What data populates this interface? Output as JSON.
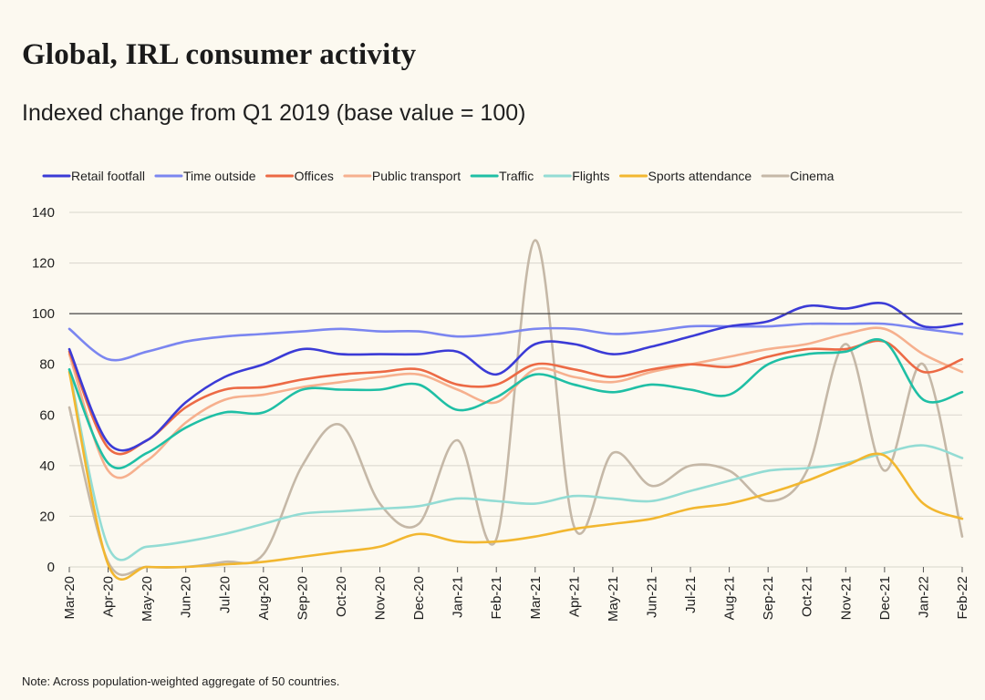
{
  "title": "Global, IRL consumer activity",
  "subtitle": "Indexed change from Q1 2019 (base value = 100)",
  "note": "Note: Across population-weighted aggregate of 50 countries.",
  "chart_data": {
    "type": "line",
    "x": [
      "Mar-20",
      "Apr-20",
      "May-20",
      "Jun-20",
      "Jul-20",
      "Aug-20",
      "Sep-20",
      "Oct-20",
      "Nov-20",
      "Dec-20",
      "Jan-21",
      "Feb-21",
      "Mar-21",
      "Apr-21",
      "May-21",
      "Jun-21",
      "Jul-21",
      "Aug-21",
      "Sep-21",
      "Oct-21",
      "Nov-21",
      "Dec-21",
      "Jan-22",
      "Feb-22"
    ],
    "ylim": [
      0,
      140
    ],
    "yticks": [
      0,
      20,
      40,
      60,
      80,
      100,
      120,
      140
    ],
    "reference_line": 100,
    "grid": "horizontal",
    "legend_position": "top",
    "series": [
      {
        "name": "Retail footfall",
        "color": "#3b3bd6",
        "values": [
          86,
          49,
          50,
          65,
          75,
          80,
          86,
          84,
          84,
          84,
          85,
          76,
          88,
          88,
          84,
          87,
          91,
          95,
          97,
          103,
          102,
          104,
          95,
          96
        ]
      },
      {
        "name": "Time outside",
        "color": "#7b86f0",
        "values": [
          94,
          82,
          85,
          89,
          91,
          92,
          93,
          94,
          93,
          93,
          91,
          92,
          94,
          94,
          92,
          93,
          95,
          95,
          95,
          96,
          96,
          96,
          94,
          92
        ]
      },
      {
        "name": "Offices",
        "color": "#ec6a45",
        "values": [
          85,
          47,
          50,
          63,
          70,
          71,
          74,
          76,
          77,
          78,
          72,
          72,
          80,
          78,
          75,
          78,
          80,
          79,
          83,
          86,
          86,
          89,
          77,
          82
        ]
      },
      {
        "name": "Public transport",
        "color": "#f6b08e",
        "values": [
          84,
          38,
          42,
          57,
          66,
          68,
          71,
          73,
          75,
          76,
          70,
          65,
          78,
          75,
          73,
          77,
          80,
          83,
          86,
          88,
          92,
          94,
          84,
          77
        ]
      },
      {
        "name": "Traffic",
        "color": "#1fbfa5",
        "values": [
          78,
          41,
          45,
          55,
          61,
          61,
          70,
          70,
          70,
          72,
          62,
          67,
          76,
          72,
          69,
          72,
          70,
          68,
          80,
          84,
          85,
          89,
          66,
          69
        ]
      },
      {
        "name": "Flights",
        "color": "#93dcd4",
        "values": [
          78,
          8,
          8,
          10,
          13,
          17,
          21,
          22,
          23,
          24,
          27,
          26,
          25,
          28,
          27,
          26,
          30,
          34,
          38,
          39,
          41,
          45,
          48,
          43
        ]
      },
      {
        "name": "Sports attendance",
        "color": "#f2b730",
        "values": [
          77,
          1,
          0,
          0,
          1,
          2,
          4,
          6,
          8,
          13,
          10,
          10,
          12,
          15,
          17,
          19,
          23,
          25,
          29,
          34,
          40,
          44,
          25,
          19
        ]
      },
      {
        "name": "Cinema",
        "color": "#c5b8a7",
        "values": [
          63,
          2,
          0,
          0,
          2,
          5,
          40,
          56,
          25,
          17,
          50,
          11,
          129,
          16,
          45,
          32,
          40,
          38,
          26,
          38,
          88,
          38,
          80,
          12
        ]
      }
    ]
  }
}
